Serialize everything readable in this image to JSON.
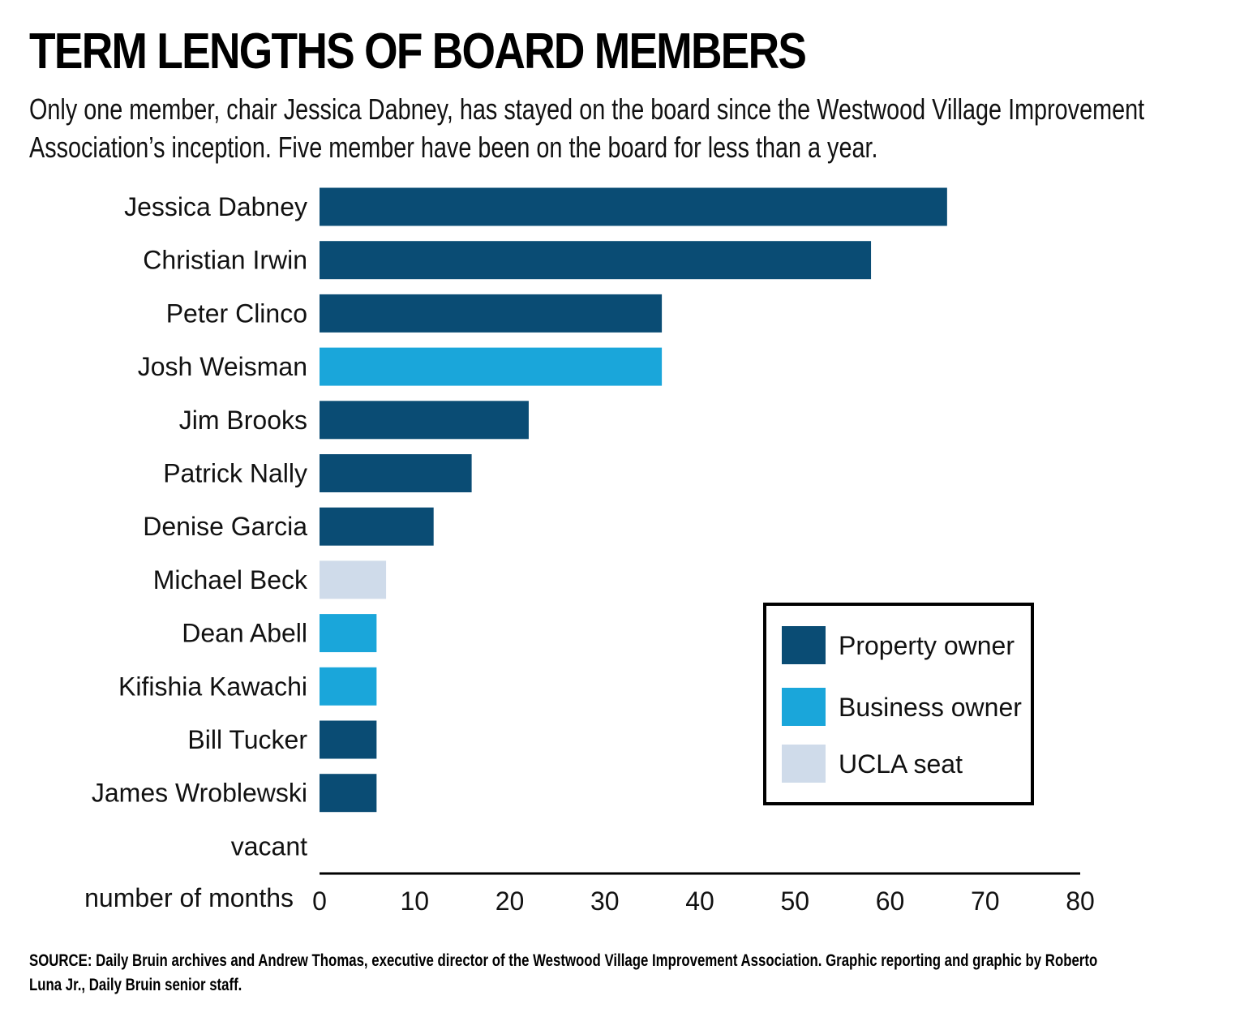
{
  "title": "TERM LENGTHS OF BOARD MEMBERS",
  "subtitle": "Only one member, chair Jessica Dabney, has stayed on the board since the Westwood Village Improvement Association’s inception. Five member have been on the board for less than a year.",
  "source": "SOURCE: Daily Bruin archives and Andrew Thomas, executive director of the Westwood Village Improvement Association. Graphic reporting and graphic by Roberto Luna Jr., Daily Bruin senior staff.",
  "colors": {
    "property": "#0a4c74",
    "business": "#1aa6da",
    "ucla": "#cfdbea"
  },
  "chart_data": {
    "type": "bar",
    "orientation": "horizontal",
    "xlabel": "number of months",
    "xlim": [
      0,
      80
    ],
    "xticks": [
      0,
      10,
      20,
      30,
      40,
      50,
      60,
      70,
      80
    ],
    "categories": [
      "Jessica Dabney",
      "Christian Irwin",
      "Peter Clinco",
      "Josh Weisman",
      "Jim Brooks",
      "Patrick Nally",
      "Denise Garcia",
      "Michael Beck",
      "Dean Abell",
      "Kifishia Kawachi",
      "Bill Tucker",
      "James Wroblewski",
      "vacant"
    ],
    "values": [
      66,
      58,
      36,
      36,
      22,
      16,
      12,
      7,
      6,
      6,
      6,
      6,
      0
    ],
    "groups": [
      "property",
      "property",
      "property",
      "business",
      "property",
      "property",
      "property",
      "ucla",
      "business",
      "business",
      "property",
      "property",
      "none"
    ],
    "legend": [
      {
        "key": "property",
        "label": "Property owner"
      },
      {
        "key": "business",
        "label": "Business owner"
      },
      {
        "key": "ucla",
        "label": "UCLA seat"
      }
    ],
    "legend_position": "bottom-right",
    "grid": false
  }
}
